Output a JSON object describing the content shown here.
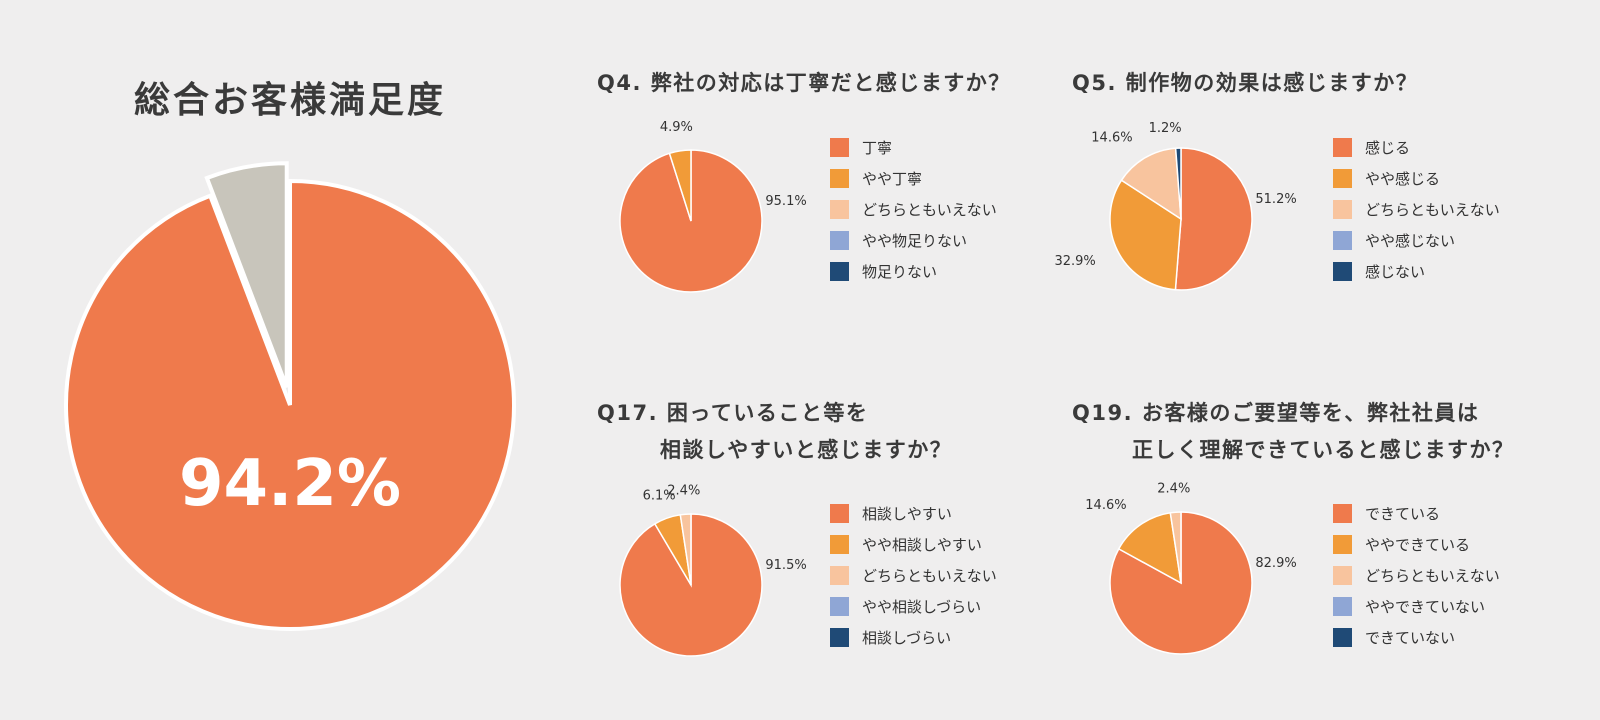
{
  "colors": {
    "background": "#efeeee",
    "main_orange": "#ef7a4c",
    "main_gray": "#c8c5bb",
    "levels": [
      "#ef7a4c",
      "#f19b38",
      "#f8c49e",
      "#8fa6d5",
      "#1f4a76"
    ]
  },
  "chart_data": [
    {
      "type": "pie",
      "title": "総合お客様満足度",
      "center_label": "94.2%",
      "values": [
        94.2,
        5.8
      ],
      "colors": [
        "#ef7a4c",
        "#c8c5bb"
      ]
    },
    {
      "type": "pie",
      "title": "Q4. 弊社の対応は丁寧だと感じますか？",
      "categories": [
        "丁寧",
        "やや丁寧",
        "どちらともいえない",
        "やや物足りない",
        "物足りない"
      ],
      "values": [
        95.1,
        4.9,
        0,
        0,
        0
      ],
      "slice_labels": [
        "95.1%",
        "4.9%",
        "",
        "",
        ""
      ]
    },
    {
      "type": "pie",
      "title": "Q5. 制作物の効果は感じますか？",
      "categories": [
        "感じる",
        "やや感じる",
        "どちらともいえない",
        "やや感じない",
        "感じない"
      ],
      "values": [
        51.2,
        32.9,
        14.6,
        0,
        1.2
      ],
      "slice_labels": [
        "51.2%",
        "32.9%",
        "14.6%",
        "",
        "1.2%"
      ]
    },
    {
      "type": "pie",
      "title_lines": [
        "Q17. 困っていること等を",
        "相談しやすいと感じますか？"
      ],
      "categories": [
        "相談しやすい",
        "やや相談しやすい",
        "どちらともいえない",
        "やや相談しづらい",
        "相談しづらい"
      ],
      "values": [
        91.5,
        6.1,
        2.4,
        0,
        0
      ],
      "slice_labels": [
        "91.5%",
        "6.1%",
        "2.4%",
        "",
        ""
      ]
    },
    {
      "type": "pie",
      "title_lines": [
        "Q19. お客様のご要望等を、弊社社員は",
        "正しく理解できていると感じますか？"
      ],
      "categories": [
        "できている",
        "ややできている",
        "どちらともいえない",
        "ややできていない",
        "できていない"
      ],
      "values": [
        82.9,
        14.6,
        2.4,
        0,
        0
      ],
      "slice_labels": [
        "82.9%",
        "14.6%",
        "2.4%",
        "",
        ""
      ]
    }
  ]
}
